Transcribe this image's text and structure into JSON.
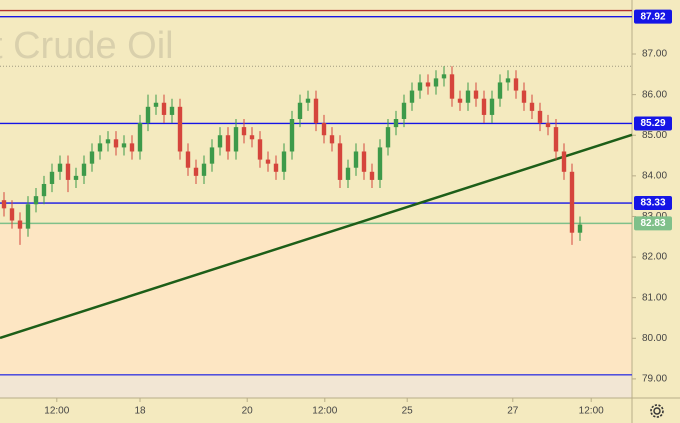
{
  "chart_data": {
    "type": "candlestick",
    "watermark": "t Crude Oil",
    "x": [
      0,
      1,
      2,
      3,
      4,
      5,
      6,
      7,
      8,
      9,
      10,
      11,
      12,
      13,
      14,
      15,
      16,
      17,
      18,
      19,
      20,
      21,
      22,
      23,
      24,
      25,
      26,
      27,
      28,
      29,
      30,
      31,
      32,
      33,
      34,
      35,
      36,
      37,
      38,
      39,
      40,
      41,
      42,
      43,
      44,
      45,
      46,
      47,
      48,
      49,
      50,
      51,
      52,
      53,
      54,
      55,
      56,
      57,
      58,
      59,
      60,
      61,
      62,
      63,
      64,
      65,
      66,
      67,
      68,
      69,
      70,
      71,
      72
    ],
    "open": [
      83.4,
      83.2,
      82.9,
      82.7,
      83.3,
      83.5,
      83.8,
      84.1,
      84.3,
      83.9,
      84.0,
      84.3,
      84.6,
      84.8,
      84.9,
      84.7,
      84.8,
      84.6,
      85.3,
      85.7,
      85.8,
      85.5,
      85.7,
      84.6,
      84.2,
      84.0,
      84.3,
      84.7,
      85.0,
      84.6,
      85.2,
      85.0,
      84.9,
      84.4,
      84.3,
      84.1,
      84.6,
      85.4,
      85.8,
      85.9,
      85.3,
      85.0,
      84.8,
      83.9,
      84.2,
      84.6,
      84.1,
      83.9,
      84.7,
      85.2,
      85.4,
      85.8,
      86.1,
      86.3,
      86.2,
      86.4,
      86.5,
      85.9,
      85.8,
      86.1,
      85.9,
      85.5,
      85.9,
      86.3,
      86.4,
      86.1,
      85.8,
      85.6,
      85.3,
      85.2,
      84.6,
      84.1,
      82.6
    ],
    "high": [
      83.6,
      83.4,
      83.1,
      83.5,
      83.7,
      84.0,
      84.3,
      84.5,
      84.5,
      84.2,
      84.5,
      84.8,
      85.0,
      85.1,
      85.1,
      85.0,
      85.0,
      85.5,
      86.0,
      86.0,
      86.0,
      85.9,
      85.9,
      84.8,
      84.4,
      84.5,
      84.9,
      85.2,
      85.2,
      85.4,
      85.4,
      85.2,
      85.1,
      84.6,
      84.5,
      84.8,
      85.6,
      86.0,
      86.1,
      86.1,
      85.5,
      85.2,
      85.0,
      84.4,
      84.8,
      84.8,
      84.3,
      84.9,
      85.4,
      85.6,
      86.0,
      86.3,
      86.5,
      86.5,
      86.6,
      86.7,
      86.7,
      86.1,
      86.3,
      86.3,
      86.1,
      86.1,
      86.5,
      86.6,
      86.6,
      86.3,
      86.0,
      85.8,
      85.5,
      85.4,
      84.8,
      84.3,
      83.0
    ],
    "low": [
      83.0,
      82.7,
      82.3,
      82.5,
      83.1,
      83.3,
      83.6,
      83.9,
      83.6,
      83.7,
      83.8,
      84.1,
      84.4,
      84.6,
      84.5,
      84.5,
      84.4,
      84.4,
      85.1,
      85.5,
      85.3,
      85.3,
      84.4,
      84.0,
      83.8,
      83.8,
      84.1,
      84.5,
      84.4,
      84.4,
      84.8,
      84.7,
      84.2,
      84.1,
      83.9,
      83.9,
      84.4,
      85.2,
      85.6,
      85.1,
      84.8,
      84.6,
      83.7,
      83.7,
      84.0,
      83.9,
      83.7,
      83.7,
      84.5,
      85.0,
      85.2,
      85.6,
      85.9,
      86.0,
      86.0,
      86.2,
      85.7,
      85.6,
      85.6,
      85.7,
      85.3,
      85.3,
      85.7,
      86.1,
      85.9,
      85.6,
      85.4,
      85.1,
      85.0,
      84.4,
      83.9,
      82.3,
      82.4
    ],
    "close": [
      83.2,
      82.9,
      82.7,
      83.3,
      83.5,
      83.8,
      84.1,
      84.3,
      83.9,
      84.0,
      84.3,
      84.6,
      84.8,
      84.9,
      84.7,
      84.8,
      84.6,
      85.3,
      85.7,
      85.8,
      85.5,
      85.7,
      84.6,
      84.2,
      84.0,
      84.3,
      84.7,
      85.0,
      84.6,
      85.2,
      85.0,
      84.9,
      84.4,
      84.3,
      84.1,
      84.6,
      85.4,
      85.8,
      85.9,
      85.3,
      85.0,
      84.8,
      83.9,
      84.2,
      84.6,
      84.1,
      83.9,
      84.7,
      85.2,
      85.4,
      85.8,
      86.1,
      86.3,
      86.2,
      86.4,
      86.5,
      85.9,
      85.8,
      86.1,
      85.9,
      85.5,
      85.9,
      86.3,
      86.4,
      86.1,
      85.8,
      85.6,
      85.3,
      85.2,
      84.6,
      84.1,
      82.6,
      82.8
    ],
    "up_color": "#3d9a4a",
    "down_color": "#d5453c",
    "xlim": [
      -0.5,
      78.5
    ],
    "ylim": [
      78.53,
      88.33
    ],
    "xticks": [
      {
        "value": 6.6,
        "label": "12:00"
      },
      {
        "value": 17,
        "label": "18"
      },
      {
        "value": 30.4,
        "label": "20"
      },
      {
        "value": 40.1,
        "label": "12:00"
      },
      {
        "value": 50.4,
        "label": "25"
      },
      {
        "value": 63.6,
        "label": "27"
      },
      {
        "value": 73.4,
        "label": "12:00"
      }
    ],
    "yticks": [
      {
        "value": 79,
        "label": "79.00"
      },
      {
        "value": 80,
        "label": "80.00"
      },
      {
        "value": 81,
        "label": "81.00"
      },
      {
        "value": 82,
        "label": "82.00"
      },
      {
        "value": 83,
        "label": "83.00"
      },
      {
        "value": 84,
        "label": "84.00"
      },
      {
        "value": 85,
        "label": "85.00"
      },
      {
        "value": 86,
        "label": "86.00"
      },
      {
        "value": 87,
        "label": "87.00"
      }
    ],
    "levels": [
      {
        "value": 88.07,
        "color": "#b03030"
      },
      {
        "value": 87.92,
        "label": "87.92",
        "color": "#1515e6"
      },
      {
        "value": 86.7,
        "color": "#a09a80",
        "dashed": true
      },
      {
        "value": 85.29,
        "label": "85.29",
        "color": "#1515e6"
      },
      {
        "value": 83.33,
        "label": "83.33",
        "color": "#1515e6"
      },
      {
        "value": 82.83,
        "label": "82.83",
        "color": "#7fc08a",
        "zone_split": true
      },
      {
        "value": 79.1,
        "color": "#3a3ae0",
        "zone_split": true
      }
    ],
    "zone_colors": [
      "#f4eabf",
      "#fde6c3",
      "#f2e6d4"
    ],
    "trendline": {
      "x": [
        -0.5,
        78.5
      ],
      "y": [
        80.01,
        85.01
      ],
      "color": "#1d5e18"
    }
  }
}
